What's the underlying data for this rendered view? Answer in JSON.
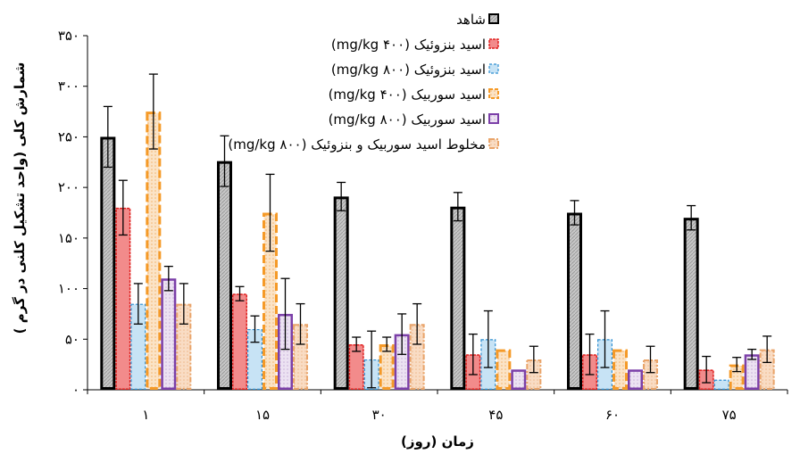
{
  "chart_data": {
    "type": "bar",
    "title": "",
    "xlabel": "زمان (روز)",
    "ylabel": "شمارش کلی (واحد تشکیل کلنی در گرم )",
    "ylim": [
      0,
      350
    ],
    "yticks": [
      0,
      50,
      100,
      150,
      200,
      250,
      300,
      350
    ],
    "ytick_labels": [
      "۰",
      "۵۰",
      "۱۰۰",
      "۱۵۰",
      "۲۰۰",
      "۲۵۰",
      "۳۰۰",
      "۳۵۰"
    ],
    "categories": [
      "۱",
      "۱۵",
      "۳۰",
      "۴۵",
      "۶۰",
      "۷۵"
    ],
    "legend_position": "top-right",
    "series": [
      {
        "name": "شاهد",
        "color": "#bfbfbf",
        "border": "#000000",
        "values": [
          250,
          226,
          191,
          181,
          175,
          170
        ],
        "errors": [
          30,
          25,
          14,
          14,
          12,
          12
        ]
      },
      {
        "name": "اسید بنزوئیک (۴۰۰ mg/kg)",
        "color": "#f28b8b",
        "border": "#e0201f",
        "values": [
          180,
          95,
          45,
          35,
          35,
          20
        ],
        "errors": [
          27,
          7,
          7,
          20,
          20,
          13
        ]
      },
      {
        "name": "اسید بنزوئیک (۸۰۰ mg/kg)",
        "color": "#c7e3f5",
        "border": "#2f8fd1",
        "values": [
          85,
          60,
          30,
          50,
          50,
          10
        ],
        "errors": [
          20,
          13,
          28,
          28,
          28,
          0
        ]
      },
      {
        "name": "اسید سوربیک (۴۰۰ mg/kg)",
        "color": "#fbe3c6",
        "border": "#f59a28",
        "values": [
          275,
          175,
          45,
          40,
          40,
          25
        ],
        "errors": [
          37,
          38,
          7,
          0,
          0,
          7
        ]
      },
      {
        "name": "اسید سوربیک (۸۰۰ mg/kg)",
        "color": "#e9dcf0",
        "border": "#7b3fa8",
        "values": [
          110,
          75,
          55,
          20,
          20,
          35
        ],
        "errors": [
          12,
          35,
          20,
          0,
          0,
          5
        ]
      },
      {
        "name": "مخلوط اسید سوربیک و بنزوئیک (۸۰۰ mg/kg)",
        "color": "#f9dcc4",
        "border": "#e9a46a",
        "values": [
          85,
          65,
          65,
          30,
          30,
          40
        ],
        "errors": [
          20,
          20,
          20,
          13,
          13,
          13
        ]
      }
    ]
  }
}
